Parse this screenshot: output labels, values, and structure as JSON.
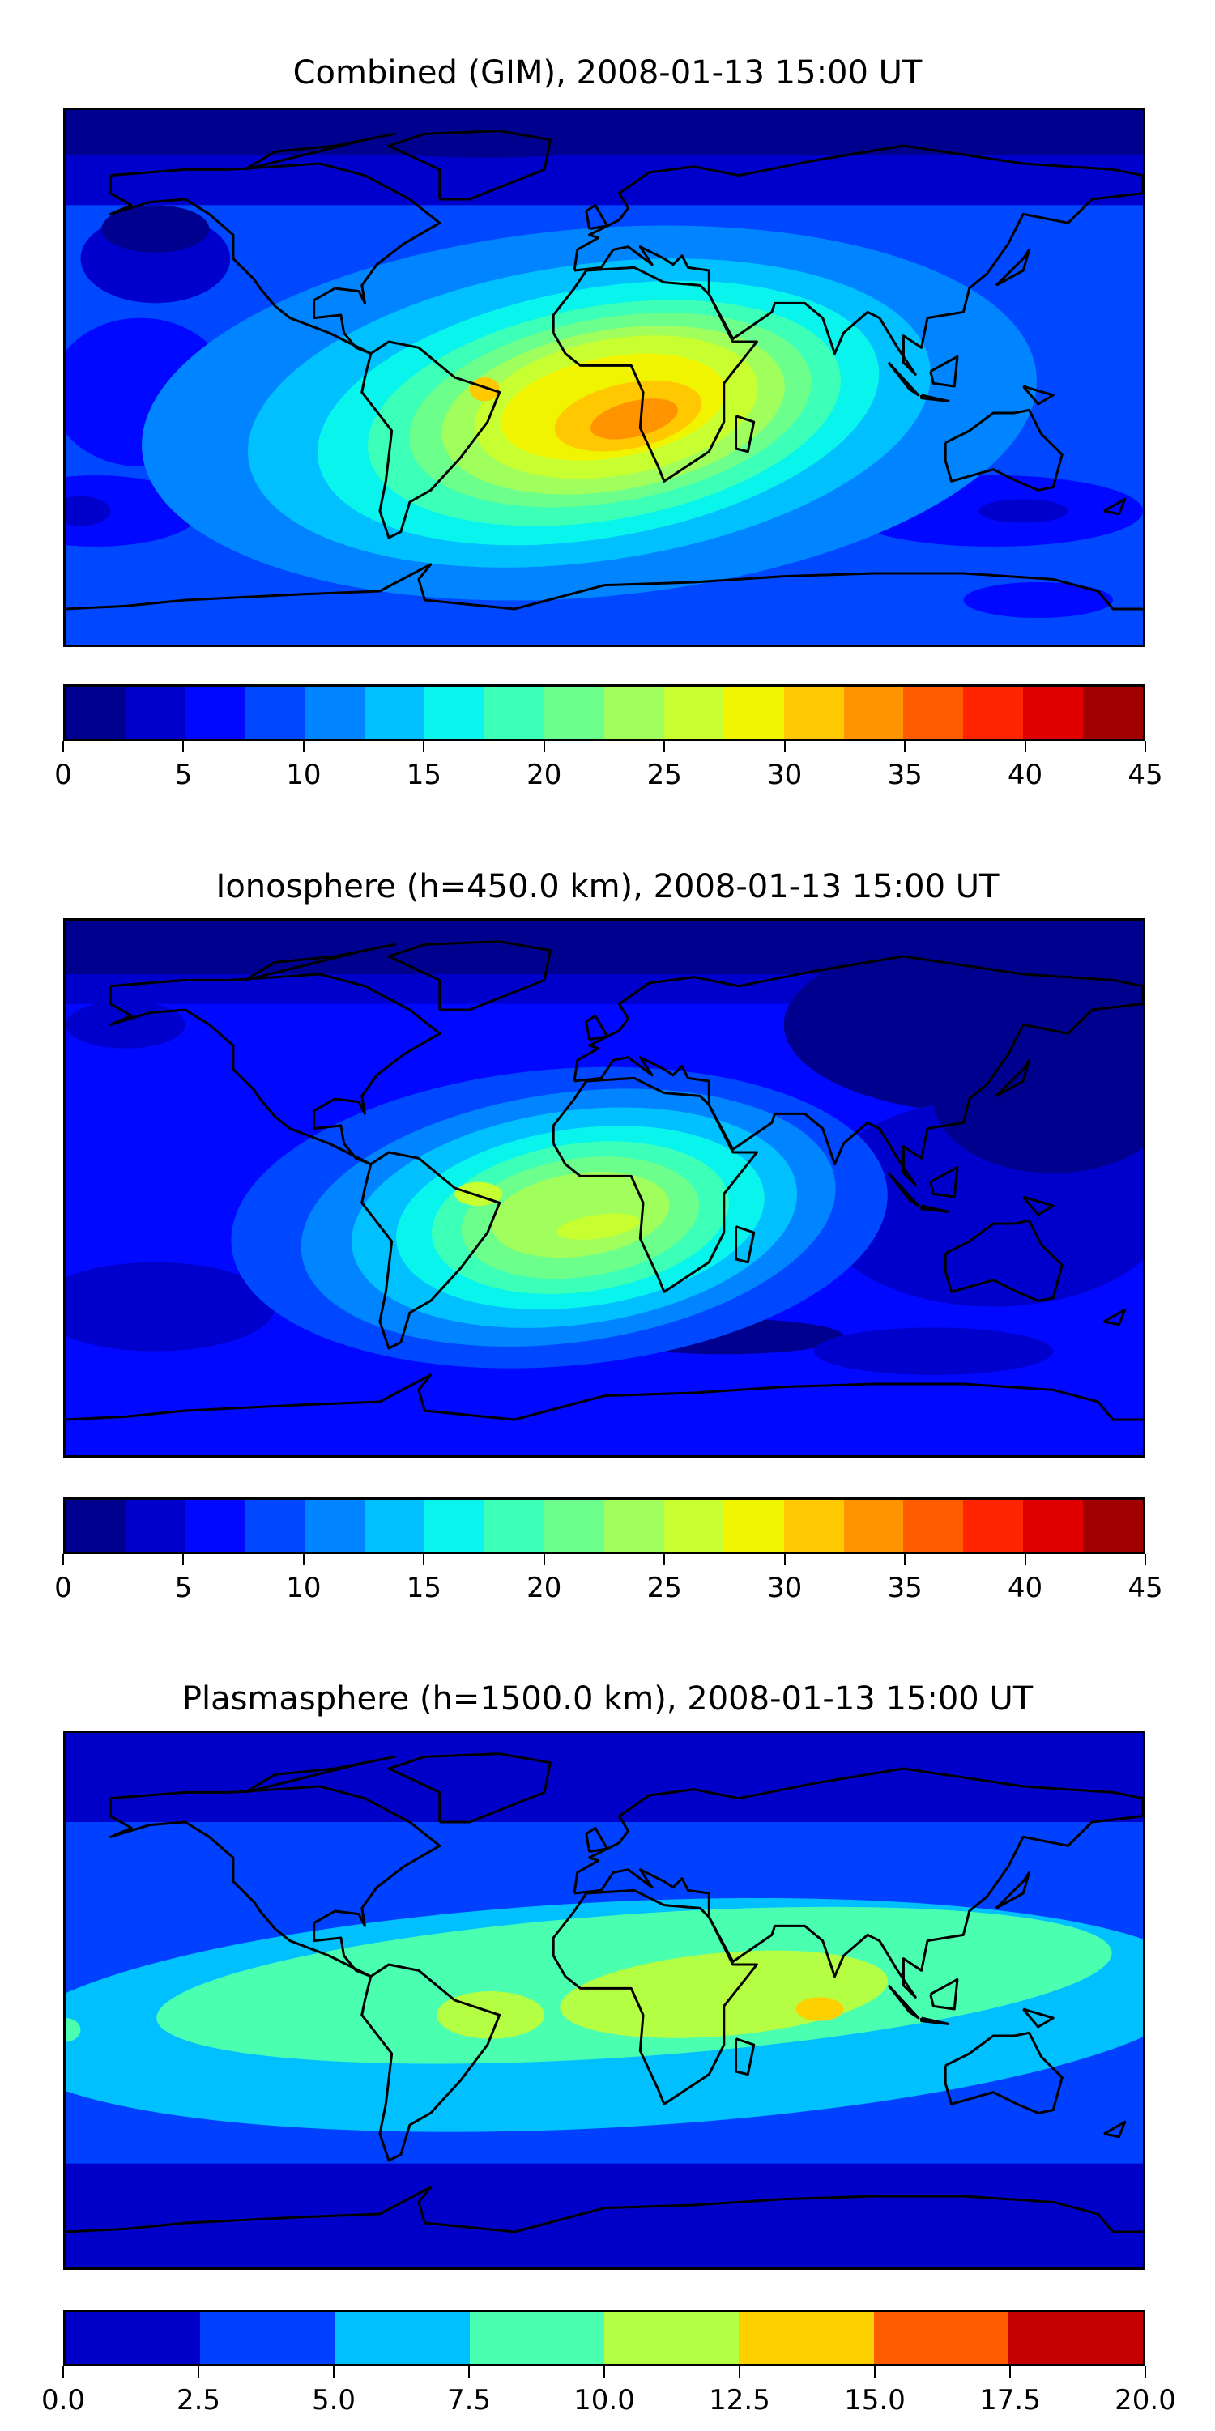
{
  "chart_data": [
    {
      "type": "heatmap",
      "subtype": "filled-contour-map",
      "title": "Combined (GIM), 2008-01-13 15:00 UT",
      "colorbar": {
        "levels": [
          0,
          2.5,
          5,
          7.5,
          10,
          12.5,
          15,
          17.5,
          20,
          22.5,
          25,
          27.5,
          30,
          32.5,
          35,
          37.5,
          40,
          42.5,
          45
        ],
        "ticks": [
          "0",
          "5",
          "10",
          "15",
          "20",
          "25",
          "30",
          "35",
          "40",
          "45"
        ],
        "range": [
          0,
          45
        ],
        "colors": [
          "#00008f",
          "#0000cd",
          "#0008ff",
          "#0048ff",
          "#0084ff",
          "#00c0ff",
          "#08f4ec",
          "#3cffb8",
          "#6cff8c",
          "#a0ff5c",
          "#c8ff30",
          "#f0f400",
          "#ffc800",
          "#ff9400",
          "#ff5c00",
          "#ff2400",
          "#e00000",
          "#a00000"
        ]
      },
      "peak_level_range": [
        32.5,
        35
      ],
      "peak_location": "South Atlantic / southern Africa"
    },
    {
      "type": "heatmap",
      "subtype": "filled-contour-map",
      "title": "Ionosphere  (h=450.0 km), 2008-01-13 15:00 UT",
      "colorbar": {
        "levels": [
          0,
          2.5,
          5,
          7.5,
          10,
          12.5,
          15,
          17.5,
          20,
          22.5,
          25,
          27.5,
          30,
          32.5,
          35,
          37.5,
          40,
          42.5,
          45
        ],
        "ticks": [
          "0",
          "5",
          "10",
          "15",
          "20",
          "25",
          "30",
          "35",
          "40",
          "45"
        ],
        "range": [
          0,
          45
        ],
        "colors": [
          "#00008f",
          "#0000cd",
          "#0008ff",
          "#0048ff",
          "#0084ff",
          "#00c0ff",
          "#08f4ec",
          "#3cffb8",
          "#6cff8c",
          "#a0ff5c",
          "#c8ff30",
          "#f0f400",
          "#ffc800",
          "#ff9400",
          "#ff5c00",
          "#ff2400",
          "#e00000",
          "#a00000"
        ]
      },
      "peak_level_range": [
        25,
        27.5
      ],
      "peak_location": "South Atlantic"
    },
    {
      "type": "heatmap",
      "subtype": "filled-contour-map",
      "title": "Plasmasphere (h=1500.0 km), 2008-01-13 15:00 UT",
      "colorbar": {
        "levels": [
          0,
          2.5,
          5,
          7.5,
          10,
          12.5,
          15,
          17.5,
          20
        ],
        "ticks": [
          "0.0",
          "2.5",
          "5.0",
          "7.5",
          "10.0",
          "12.5",
          "15.0",
          "17.5",
          "20.0"
        ],
        "range": [
          0,
          20
        ],
        "colors": [
          "#0000c8",
          "#0040ff",
          "#00c0ff",
          "#4affb0",
          "#b4ff44",
          "#ffd000",
          "#ff5c00",
          "#c40000"
        ]
      },
      "peak_level_range": [
        12.5,
        15
      ],
      "peak_location": "Indian Ocean"
    }
  ]
}
